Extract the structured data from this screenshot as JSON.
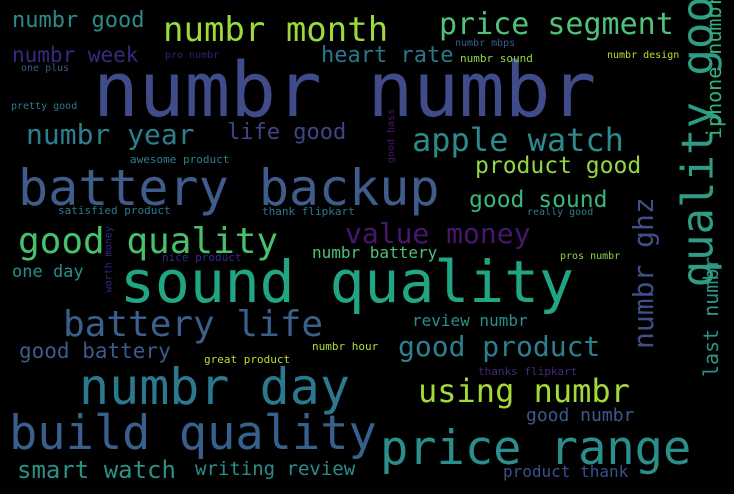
{
  "words": [
    {
      "text": "numbr numbr",
      "color": "#404b8a"
    },
    {
      "text": "sound quality",
      "color": "#21a583"
    },
    {
      "text": "battery backup",
      "color": "#3f5c8b"
    },
    {
      "text": "numbr day",
      "color": "#2c788e"
    },
    {
      "text": "price range",
      "color": "#2a8e8a"
    },
    {
      "text": "build quality",
      "color": "#38608c"
    },
    {
      "text": "quality good",
      "color": "#2f9d83"
    },
    {
      "text": "battery life",
      "color": "#3b5f8b"
    },
    {
      "text": "good quality",
      "color": "#46c26d"
    },
    {
      "text": "numbr month",
      "color": "#9bd93c"
    },
    {
      "text": "price segment",
      "color": "#4fc379"
    },
    {
      "text": "apple watch",
      "color": "#2d8a8c"
    },
    {
      "text": "using numbr",
      "color": "#a2da37"
    },
    {
      "text": "good product",
      "color": "#2c7f8e"
    },
    {
      "text": "value money",
      "color": "#47176e"
    },
    {
      "text": "numbr year",
      "color": "#2c7f8e"
    },
    {
      "text": "numbr ghz",
      "color": "#3e508a"
    },
    {
      "text": "smart watch",
      "color": "#2a9187"
    },
    {
      "text": "product good",
      "color": "#91d643"
    },
    {
      "text": "good sound",
      "color": "#3bb77a"
    },
    {
      "text": "heart rate",
      "color": "#2a788e"
    },
    {
      "text": "good battery",
      "color": "#3e5a8b"
    },
    {
      "text": "numbr good",
      "color": "#2c8a8b"
    },
    {
      "text": "life good",
      "color": "#414487"
    },
    {
      "text": "numbr week",
      "color": "#3b2881"
    },
    {
      "text": "iphone numbr",
      "color": "#32af7a"
    },
    {
      "text": "last numbr",
      "color": "#2b948a"
    },
    {
      "text": "writing review",
      "color": "#2b8e8c"
    },
    {
      "text": "good numbr",
      "color": "#3d598c"
    },
    {
      "text": "product thank",
      "color": "#3b508a"
    },
    {
      "text": "review numbr",
      "color": "#2b8e8c"
    },
    {
      "text": "one day",
      "color": "#2b8e8c"
    },
    {
      "text": "numbr battery",
      "color": "#4dc279"
    },
    {
      "text": "awesome product",
      "color": "#2c7f8e"
    },
    {
      "text": "satisfied product",
      "color": "#2b7a8e"
    },
    {
      "text": "thank flipkart",
      "color": "#2b788e"
    },
    {
      "text": "really good",
      "color": "#2f7a8c"
    },
    {
      "text": "pro numbr",
      "color": "#3b1e74"
    },
    {
      "text": "one plus",
      "color": "#3b5b8d"
    },
    {
      "text": "pretty good",
      "color": "#2b7b8d"
    },
    {
      "text": "numbr mbps",
      "color": "#3b5b8d"
    },
    {
      "text": "numbr sound",
      "color": "#8fd742"
    },
    {
      "text": "numbr design",
      "color": "#b8de2c"
    },
    {
      "text": "good bass",
      "color": "#47176e"
    },
    {
      "text": "worth money",
      "color": "#32278b"
    },
    {
      "text": "nice product",
      "color": "#3a278b"
    },
    {
      "text": "pros numbr",
      "color": "#91d643"
    },
    {
      "text": "great product",
      "color": "#b8de2c"
    },
    {
      "text": "numbr hour",
      "color": "#a8db33"
    },
    {
      "text": "thanks flipkart",
      "color": "#46287e"
    }
  ]
}
